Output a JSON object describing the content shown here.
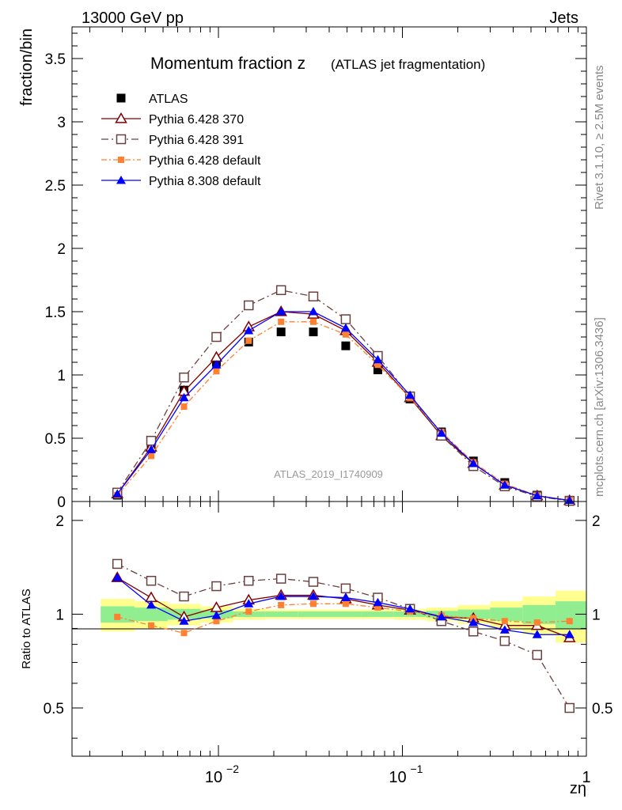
{
  "header": {
    "left": "13000 GeV pp",
    "right": "Jets"
  },
  "side_labels": {
    "rivet": "Rivet 3.1.10, ≥ 2.5M events",
    "mcplots": "mcplots.cern.ch [arXiv:1306.3436]"
  },
  "analysis_id": "ATLAS_2019_I1740909",
  "colors": {
    "atlas": "#000000",
    "p6_370": "#800000",
    "p6_391": "#6b4040",
    "p6_default": "#ff8030",
    "p8_default": "#0000ff",
    "band_green": "#90ee90",
    "band_yellow": "#ffff90"
  },
  "chart_data": [
    {
      "type": "scatter",
      "title": "Momentum fraction z",
      "title_note": "(ATLAS jet fragmentation)",
      "ylabel": "fraction/bin",
      "xscale": "log",
      "xlim": [
        0.0016,
        1.0
      ],
      "ylim": [
        0,
        3.75
      ],
      "yticks": [
        "0",
        "0.5",
        "1",
        "1.5",
        "2",
        "2.5",
        "3",
        "3.5"
      ],
      "legend_position": "top-left",
      "x": [
        0.00282,
        0.00431,
        0.0065,
        0.00975,
        0.0146,
        0.0219,
        0.0328,
        0.0492,
        0.0735,
        0.11,
        0.163,
        0.243,
        0.36,
        0.54,
        0.81
      ],
      "series": [
        {
          "name": "ATLAS",
          "marker": "filled-square",
          "values": [
            0.05,
            0.42,
            0.88,
            1.1,
            1.26,
            1.34,
            1.34,
            1.23,
            1.04,
            0.81,
            0.55,
            0.32,
            0.15,
            0.05,
            0.01
          ]
        },
        {
          "name": "Pythia 6.428 370",
          "marker": "open-triangle",
          "values": [
            0.06,
            0.43,
            0.87,
            1.14,
            1.38,
            1.5,
            1.48,
            1.35,
            1.1,
            0.82,
            0.52,
            0.3,
            0.13,
            0.045,
            0.008
          ]
        },
        {
          "name": "Pythia 6.428 391",
          "marker": "open-square",
          "values": [
            0.07,
            0.48,
            0.98,
            1.3,
            1.55,
            1.67,
            1.62,
            1.44,
            1.15,
            0.83,
            0.52,
            0.28,
            0.12,
            0.04,
            0.005
          ]
        },
        {
          "name": "Pythia 6.428 default",
          "marker": "small-filled-square",
          "values": [
            0.05,
            0.36,
            0.75,
            1.03,
            1.27,
            1.42,
            1.42,
            1.32,
            1.08,
            0.82,
            0.55,
            0.31,
            0.14,
            0.047,
            0.0095
          ]
        },
        {
          "name": "Pythia 8.308 default",
          "marker": "filled-triangle",
          "values": [
            0.06,
            0.41,
            0.82,
            1.08,
            1.35,
            1.5,
            1.5,
            1.37,
            1.12,
            0.84,
            0.54,
            0.3,
            0.13,
            0.045,
            0.0085
          ]
        }
      ]
    },
    {
      "type": "line",
      "ylabel": "Ratio to ATLAS",
      "xlabel": "zη",
      "xscale": "log",
      "xlim": [
        0.0016,
        1.0
      ],
      "ylim": [
        0.35,
        2.3
      ],
      "yticks": [
        "0.5",
        "1",
        "2"
      ],
      "xticks": [
        "10^-2",
        "10^-1",
        "1"
      ],
      "bins": [
        0.00229,
        0.0035,
        0.0053,
        0.008,
        0.012,
        0.018,
        0.027,
        0.04,
        0.06,
        0.09,
        0.135,
        0.2,
        0.3,
        0.45,
        0.68,
        1.0
      ],
      "band_green": [
        0.06,
        0.05,
        0.04,
        0.03,
        0.02,
        0.02,
        0.02,
        0.02,
        0.02,
        0.02,
        0.025,
        0.035,
        0.05,
        0.07,
        0.1
      ],
      "band_yellow": [
        0.12,
        0.1,
        0.08,
        0.06,
        0.04,
        0.035,
        0.035,
        0.035,
        0.035,
        0.04,
        0.05,
        0.07,
        0.1,
        0.14,
        0.19
      ],
      "x": [
        0.00282,
        0.00431,
        0.0065,
        0.00975,
        0.0146,
        0.0219,
        0.0328,
        0.0492,
        0.0735,
        0.11,
        0.163,
        0.243,
        0.36,
        0.54,
        0.81
      ],
      "series": [
        {
          "name": "Pythia 6.428 370",
          "values": [
            1.31,
            1.13,
            0.98,
            1.05,
            1.11,
            1.15,
            1.15,
            1.12,
            1.07,
            1.03,
            0.98,
            0.97,
            0.92,
            0.92,
            0.84
          ]
        },
        {
          "name": "Pythia 6.428 391",
          "values": [
            1.45,
            1.28,
            1.14,
            1.23,
            1.28,
            1.3,
            1.27,
            1.21,
            1.13,
            1.04,
            0.95,
            0.88,
            0.82,
            0.74,
            0.5
          ]
        },
        {
          "name": "Pythia 6.428 default",
          "values": [
            0.98,
            0.92,
            0.87,
            0.95,
            1.02,
            1.07,
            1.08,
            1.08,
            1.05,
            1.02,
            0.99,
            0.97,
            0.95,
            0.94,
            0.95
          ]
        },
        {
          "name": "Pythia 8.308 default",
          "values": [
            1.31,
            1.07,
            0.95,
            0.99,
            1.08,
            1.14,
            1.14,
            1.13,
            1.09,
            1.04,
            0.98,
            0.94,
            0.89,
            0.86,
            0.86
          ]
        }
      ]
    }
  ]
}
